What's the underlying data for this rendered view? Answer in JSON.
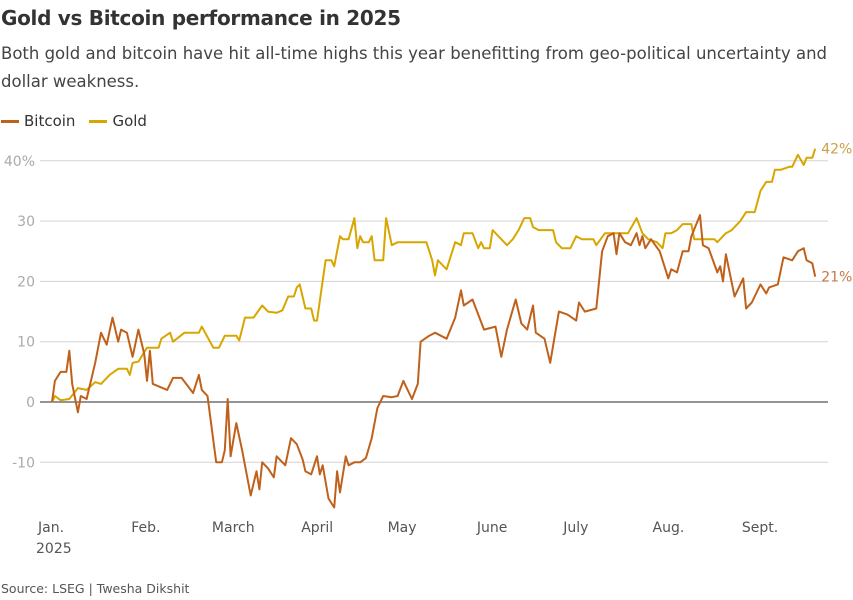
{
  "title": "Gold vs Bitcoin performance in 2025",
  "subtitle": "Both gold and bitcoin have hit all-time highs this year benefitting from geo-political uncertainty and dollar weakness.",
  "source": "Source: LSEG | Twesha Dikshit",
  "chart_data": {
    "type": "line",
    "title": "Gold vs Bitcoin performance in 2025",
    "xlabel": "",
    "ylabel": "",
    "ylim": [
      -18,
      43
    ],
    "xlim": [
      "2025-01-01",
      "2025-09-23"
    ],
    "grid": true,
    "legend": "top-left",
    "y_ticks": [
      {
        "value": 40,
        "label": "40%"
      },
      {
        "value": 30,
        "label": "30"
      },
      {
        "value": 20,
        "label": "20"
      },
      {
        "value": 10,
        "label": "10"
      },
      {
        "value": 0,
        "label": "0"
      },
      {
        "value": -10,
        "label": "-10"
      }
    ],
    "x_ticks": [
      {
        "date": "2025-01-01",
        "label": "Jan.",
        "sublabel": "2025"
      },
      {
        "date": "2025-02-01",
        "label": "Feb."
      },
      {
        "date": "2025-03-01",
        "label": "March"
      },
      {
        "date": "2025-04-01",
        "label": "April"
      },
      {
        "date": "2025-05-01",
        "label": "May"
      },
      {
        "date": "2025-06-01",
        "label": "June"
      },
      {
        "date": "2025-07-01",
        "label": "July"
      },
      {
        "date": "2025-08-01",
        "label": "Aug."
      },
      {
        "date": "2025-09-01",
        "label": "Sept."
      }
    ],
    "series": [
      {
        "name": "Bitcoin",
        "color": "#c0611b",
        "end_label": "21%",
        "end_label_color": "#c57a47",
        "points": [
          [
            "2025-01-01",
            0
          ],
          [
            "2025-01-02",
            3.5
          ],
          [
            "2025-01-04",
            5
          ],
          [
            "2025-01-06",
            5
          ],
          [
            "2025-01-07",
            8.5
          ],
          [
            "2025-01-08",
            3
          ],
          [
            "2025-01-10",
            -1.7
          ],
          [
            "2025-01-11",
            1
          ],
          [
            "2025-01-13",
            0.5
          ],
          [
            "2025-01-16",
            6.5
          ],
          [
            "2025-01-18",
            11.5
          ],
          [
            "2025-01-20",
            9.5
          ],
          [
            "2025-01-22",
            14
          ],
          [
            "2025-01-24",
            10
          ],
          [
            "2025-01-25",
            12
          ],
          [
            "2025-01-27",
            11.5
          ],
          [
            "2025-01-29",
            7.5
          ],
          [
            "2025-01-31",
            12
          ],
          [
            "2025-02-02",
            8
          ],
          [
            "2025-02-03",
            3.5
          ],
          [
            "2025-02-04",
            8.5
          ],
          [
            "2025-02-05",
            3
          ],
          [
            "2025-02-10",
            2
          ],
          [
            "2025-02-12",
            4
          ],
          [
            "2025-02-15",
            4
          ],
          [
            "2025-02-19",
            1.5
          ],
          [
            "2025-02-21",
            4.5
          ],
          [
            "2025-02-22",
            2
          ],
          [
            "2025-02-24",
            1
          ],
          [
            "2025-02-27",
            -10
          ],
          [
            "2025-03-01",
            -10
          ],
          [
            "2025-03-02",
            -8
          ],
          [
            "2025-03-03",
            0.5
          ],
          [
            "2025-03-04",
            -9
          ],
          [
            "2025-03-06",
            -3.5
          ],
          [
            "2025-03-08",
            -8
          ],
          [
            "2025-03-11",
            -15.5
          ],
          [
            "2025-03-13",
            -11.5
          ],
          [
            "2025-03-14",
            -14.5
          ],
          [
            "2025-03-15",
            -10
          ],
          [
            "2025-03-17",
            -11
          ],
          [
            "2025-03-19",
            -12.5
          ],
          [
            "2025-03-20",
            -9
          ],
          [
            "2025-03-23",
            -10.5
          ],
          [
            "2025-03-25",
            -6
          ],
          [
            "2025-03-27",
            -7
          ],
          [
            "2025-03-29",
            -9.5
          ],
          [
            "2025-03-30",
            -11.5
          ],
          [
            "2025-04-01",
            -12
          ],
          [
            "2025-04-03",
            -9
          ],
          [
            "2025-04-04",
            -12
          ],
          [
            "2025-04-05",
            -10.5
          ],
          [
            "2025-04-07",
            -16
          ],
          [
            "2025-04-09",
            -17.5
          ],
          [
            "2025-04-10",
            -11.5
          ],
          [
            "2025-04-11",
            -15
          ],
          [
            "2025-04-13",
            -9
          ],
          [
            "2025-04-14",
            -10.5
          ],
          [
            "2025-04-16",
            -10
          ],
          [
            "2025-04-18",
            -10
          ],
          [
            "2025-04-20",
            -9.3
          ],
          [
            "2025-04-22",
            -6
          ],
          [
            "2025-04-24",
            -1
          ],
          [
            "2025-04-25",
            0
          ],
          [
            "2025-04-26",
            1
          ],
          [
            "2025-04-29",
            0.8
          ],
          [
            "2025-05-01",
            1
          ],
          [
            "2025-05-03",
            3.5
          ],
          [
            "2025-05-04",
            2.5
          ],
          [
            "2025-05-06",
            0.5
          ],
          [
            "2025-05-08",
            3
          ],
          [
            "2025-05-09",
            10
          ],
          [
            "2025-05-12",
            11
          ],
          [
            "2025-05-14",
            11.5
          ],
          [
            "2025-05-18",
            10.5
          ],
          [
            "2025-05-21",
            14
          ],
          [
            "2025-05-23",
            18.5
          ],
          [
            "2025-05-24",
            16
          ],
          [
            "2025-05-27",
            17
          ],
          [
            "2025-05-31",
            12
          ],
          [
            "2025-06-04",
            12.5
          ],
          [
            "2025-06-06",
            7.5
          ],
          [
            "2025-06-08",
            12
          ],
          [
            "2025-06-11",
            17
          ],
          [
            "2025-06-13",
            13
          ],
          [
            "2025-06-15",
            12
          ],
          [
            "2025-06-17",
            16
          ],
          [
            "2025-06-18",
            11.5
          ],
          [
            "2025-06-21",
            10.5
          ],
          [
            "2025-06-23",
            6.5
          ],
          [
            "2025-06-26",
            15
          ],
          [
            "2025-06-29",
            14.5
          ],
          [
            "2025-07-02",
            13.5
          ],
          [
            "2025-07-03",
            16.5
          ],
          [
            "2025-07-05",
            15
          ],
          [
            "2025-07-09",
            15.5
          ],
          [
            "2025-07-11",
            25
          ],
          [
            "2025-07-13",
            27.5
          ],
          [
            "2025-07-15",
            28
          ],
          [
            "2025-07-16",
            24.5
          ],
          [
            "2025-07-17",
            28
          ],
          [
            "2025-07-19",
            26.5
          ],
          [
            "2025-07-21",
            26
          ],
          [
            "2025-07-23",
            28
          ],
          [
            "2025-07-24",
            26
          ],
          [
            "2025-07-25",
            27.5
          ],
          [
            "2025-07-26",
            25.5
          ],
          [
            "2025-07-28",
            27
          ],
          [
            "2025-07-31",
            25
          ],
          [
            "2025-08-03",
            20.5
          ],
          [
            "2025-08-04",
            22
          ],
          [
            "2025-08-06",
            21.5
          ],
          [
            "2025-08-08",
            25
          ],
          [
            "2025-08-10",
            25
          ],
          [
            "2025-08-11",
            27.5
          ],
          [
            "2025-08-14",
            31
          ],
          [
            "2025-08-15",
            26
          ],
          [
            "2025-08-17",
            25.5
          ],
          [
            "2025-08-20",
            21.5
          ],
          [
            "2025-08-21",
            22.5
          ],
          [
            "2025-08-22",
            20
          ],
          [
            "2025-08-23",
            24.5
          ],
          [
            "2025-08-26",
            17.5
          ],
          [
            "2025-08-29",
            20.5
          ],
          [
            "2025-08-30",
            15.5
          ],
          [
            "2025-09-01",
            16.5
          ],
          [
            "2025-09-04",
            19.5
          ],
          [
            "2025-09-06",
            18
          ],
          [
            "2025-09-07",
            19
          ],
          [
            "2025-09-10",
            19.5
          ],
          [
            "2025-09-12",
            24
          ],
          [
            "2025-09-15",
            23.5
          ],
          [
            "2025-09-17",
            25
          ],
          [
            "2025-09-19",
            25.5
          ],
          [
            "2025-09-20",
            23.5
          ],
          [
            "2025-09-22",
            23
          ],
          [
            "2025-09-23",
            20.8
          ]
        ]
      },
      {
        "name": "Gold",
        "color": "#d8a600",
        "end_label": "42%",
        "end_label_color": "#c9a045",
        "points": [
          [
            "2025-01-01",
            0
          ],
          [
            "2025-01-02",
            1
          ],
          [
            "2025-01-04",
            0.3
          ],
          [
            "2025-01-07",
            0.5
          ],
          [
            "2025-01-10",
            2.3
          ],
          [
            "2025-01-13",
            2
          ],
          [
            "2025-01-16",
            3.3
          ],
          [
            "2025-01-18",
            3
          ],
          [
            "2025-01-21",
            4.5
          ],
          [
            "2025-01-24",
            5.5
          ],
          [
            "2025-01-27",
            5.5
          ],
          [
            "2025-01-28",
            4.5
          ],
          [
            "2025-01-29",
            6.5
          ],
          [
            "2025-01-31",
            6.7
          ],
          [
            "2025-02-03",
            9
          ],
          [
            "2025-02-07",
            9
          ],
          [
            "2025-02-08",
            10.5
          ],
          [
            "2025-02-11",
            11.5
          ],
          [
            "2025-02-12",
            10
          ],
          [
            "2025-02-16",
            11.5
          ],
          [
            "2025-02-21",
            11.5
          ],
          [
            "2025-02-22",
            12.5
          ],
          [
            "2025-02-26",
            9
          ],
          [
            "2025-02-28",
            9
          ],
          [
            "2025-03-02",
            11
          ],
          [
            "2025-03-06",
            11
          ],
          [
            "2025-03-07",
            10.2
          ],
          [
            "2025-03-09",
            14
          ],
          [
            "2025-03-12",
            14
          ],
          [
            "2025-03-15",
            16
          ],
          [
            "2025-03-17",
            15
          ],
          [
            "2025-03-20",
            14.8
          ],
          [
            "2025-03-22",
            15.2
          ],
          [
            "2025-03-24",
            17.5
          ],
          [
            "2025-03-26",
            17.5
          ],
          [
            "2025-03-27",
            19
          ],
          [
            "2025-03-28",
            19.5
          ],
          [
            "2025-03-30",
            15.5
          ],
          [
            "2025-04-01",
            15.5
          ],
          [
            "2025-04-02",
            13.5
          ],
          [
            "2025-04-03",
            13.5
          ],
          [
            "2025-04-06",
            23.5
          ],
          [
            "2025-04-08",
            23.5
          ],
          [
            "2025-04-09",
            22.5
          ],
          [
            "2025-04-11",
            27.5
          ],
          [
            "2025-04-12",
            27
          ],
          [
            "2025-04-14",
            27
          ],
          [
            "2025-04-16",
            30.5
          ],
          [
            "2025-04-17",
            25.5
          ],
          [
            "2025-04-18",
            27.5
          ],
          [
            "2025-04-19",
            26.5
          ],
          [
            "2025-04-21",
            26.5
          ],
          [
            "2025-04-22",
            27.5
          ],
          [
            "2025-04-23",
            23.5
          ],
          [
            "2025-04-26",
            23.5
          ],
          [
            "2025-04-27",
            30.5
          ],
          [
            "2025-04-29",
            26
          ],
          [
            "2025-05-01",
            26.5
          ],
          [
            "2025-05-09",
            26.5
          ],
          [
            "2025-05-11",
            26.5
          ],
          [
            "2025-05-13",
            23.5
          ],
          [
            "2025-05-14",
            21
          ],
          [
            "2025-05-15",
            23.5
          ],
          [
            "2025-05-18",
            22
          ],
          [
            "2025-05-21",
            26.5
          ],
          [
            "2025-05-23",
            26
          ],
          [
            "2025-05-24",
            28
          ],
          [
            "2025-05-27",
            28
          ],
          [
            "2025-05-29",
            25.5
          ],
          [
            "2025-05-30",
            26.5
          ],
          [
            "2025-05-31",
            25.5
          ],
          [
            "2025-06-02",
            25.5
          ],
          [
            "2025-06-03",
            28.5
          ],
          [
            "2025-06-05",
            27.5
          ],
          [
            "2025-06-08",
            26
          ],
          [
            "2025-06-10",
            27
          ],
          [
            "2025-06-12",
            28.5
          ],
          [
            "2025-06-14",
            30.5
          ],
          [
            "2025-06-16",
            30.5
          ],
          [
            "2025-06-17",
            29
          ],
          [
            "2025-06-19",
            28.5
          ],
          [
            "2025-06-24",
            28.5
          ],
          [
            "2025-06-25",
            26.5
          ],
          [
            "2025-06-27",
            25.5
          ],
          [
            "2025-06-30",
            25.5
          ],
          [
            "2025-07-02",
            27.5
          ],
          [
            "2025-07-04",
            27
          ],
          [
            "2025-07-08",
            27
          ],
          [
            "2025-07-09",
            26
          ],
          [
            "2025-07-12",
            28
          ],
          [
            "2025-07-20",
            28
          ],
          [
            "2025-07-23",
            30.5
          ],
          [
            "2025-07-25",
            28
          ],
          [
            "2025-07-27",
            27
          ],
          [
            "2025-07-30",
            26.5
          ],
          [
            "2025-08-01",
            25.5
          ],
          [
            "2025-08-02",
            28
          ],
          [
            "2025-08-04",
            28
          ],
          [
            "2025-08-06",
            28.5
          ],
          [
            "2025-08-08",
            29.5
          ],
          [
            "2025-08-11",
            29.5
          ],
          [
            "2025-08-12",
            27
          ],
          [
            "2025-08-15",
            27
          ],
          [
            "2025-08-19",
            27
          ],
          [
            "2025-08-20",
            26.5
          ],
          [
            "2025-08-23",
            28
          ],
          [
            "2025-08-25",
            28.5
          ],
          [
            "2025-08-28",
            30
          ],
          [
            "2025-08-30",
            31.5
          ],
          [
            "2025-09-02",
            31.5
          ],
          [
            "2025-09-04",
            35
          ],
          [
            "2025-09-06",
            36.5
          ],
          [
            "2025-09-08",
            36.5
          ],
          [
            "2025-09-09",
            38.5
          ],
          [
            "2025-09-11",
            38.5
          ],
          [
            "2025-09-14",
            39
          ],
          [
            "2025-09-15",
            39
          ],
          [
            "2025-09-17",
            41
          ],
          [
            "2025-09-19",
            39.3
          ],
          [
            "2025-09-20",
            40.5
          ],
          [
            "2025-09-22",
            40.5
          ],
          [
            "2025-09-23",
            42
          ]
        ]
      }
    ]
  }
}
